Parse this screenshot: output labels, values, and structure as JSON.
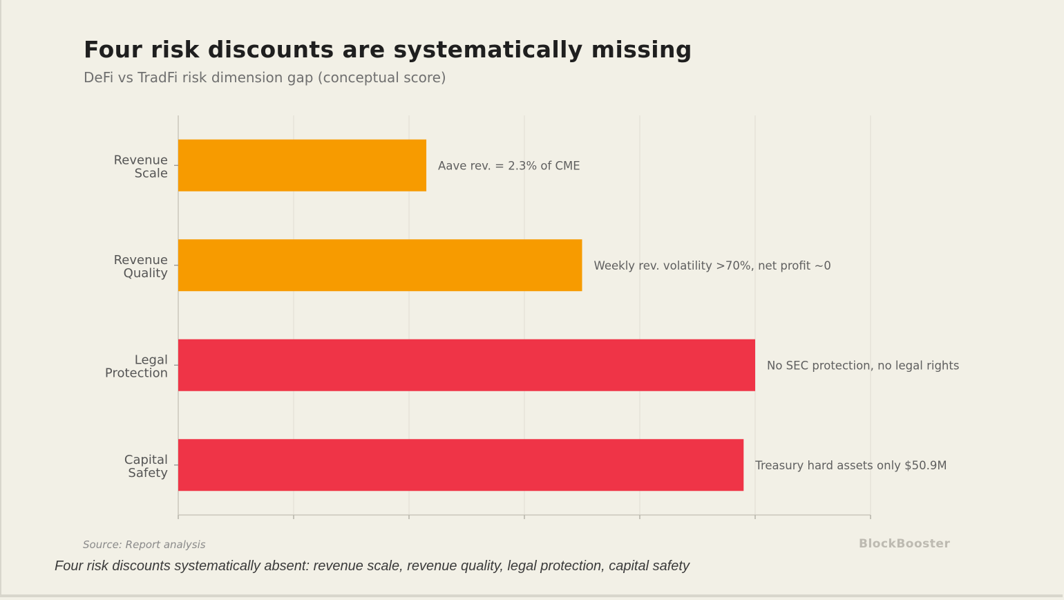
{
  "colors": {
    "background": "#f2f0e6",
    "orange": "#f79b00",
    "red": "#ef3447",
    "grid": "#e6e3d8",
    "axis": "#d4d1c6"
  },
  "chart_data": {
    "type": "bar",
    "orientation": "horizontal",
    "title": "Four risk discounts are systematically missing",
    "subtitle": "DeFi vs TradFi risk dimension gap (conceptual score)",
    "xlabel": "",
    "ylabel": "",
    "xlim": [
      0,
      6
    ],
    "xticks": [
      0,
      1,
      2,
      3,
      4,
      5,
      6
    ],
    "grid": true,
    "categories": [
      [
        "Revenue",
        "Scale"
      ],
      [
        "Revenue",
        "Quality"
      ],
      [
        "Legal",
        "Protection"
      ],
      [
        "Capital",
        "Safety"
      ]
    ],
    "values": [
      2.15,
      3.5,
      5.0,
      4.9
    ],
    "bar_colors": [
      "#f79b00",
      "#f79b00",
      "#ef3447",
      "#ef3447"
    ],
    "annotations": [
      "Aave rev. = 2.3% of CME",
      "Weekly rev. volatility >70%, net profit ~0",
      "No SEC protection, no legal rights",
      "Treasury hard assets only $50.9M"
    ]
  },
  "footer": {
    "source": "Source: Report analysis",
    "brand": "BlockBooster"
  },
  "caption": "Four risk discounts systematically absent: revenue scale, revenue quality, legal protection, capital safety"
}
